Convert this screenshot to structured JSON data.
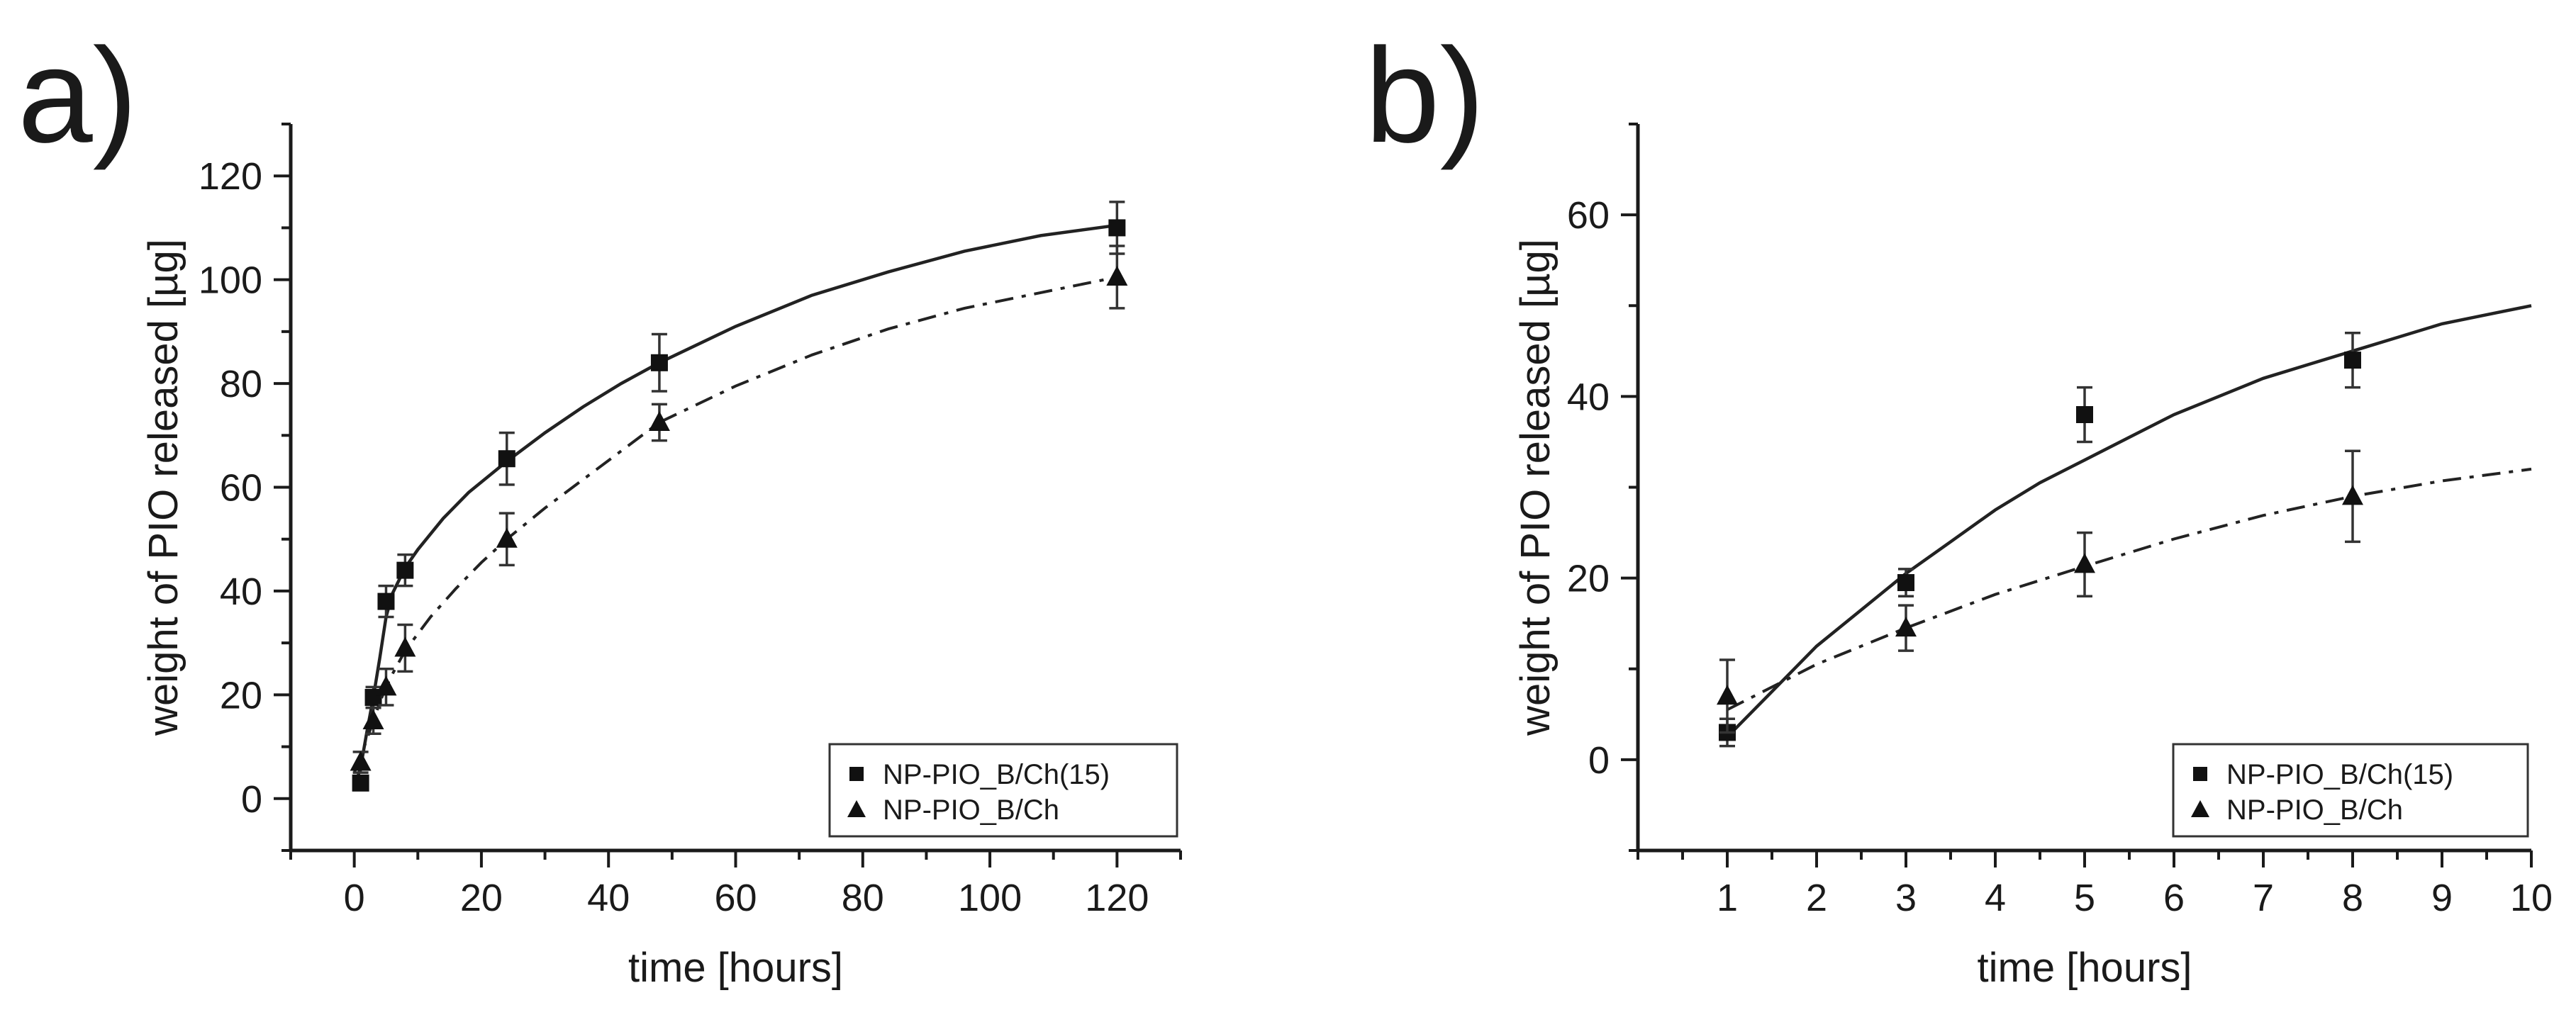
{
  "chart_data": [
    {
      "type": "scatter",
      "panel_label": "a)",
      "xlabel": "time [hours]",
      "ylabel": "weight of PIO released [µg]",
      "xlim": [
        -10,
        130
      ],
      "ylim": [
        -10,
        130
      ],
      "xticks": [
        0,
        20,
        40,
        60,
        80,
        100,
        120
      ],
      "yticks": [
        0,
        20,
        40,
        60,
        80,
        100,
        120
      ],
      "legend": "bottom-right",
      "series": [
        {
          "name": "NP-PIO_B/Ch(15)",
          "marker": "square",
          "line": "solid",
          "x": [
            1,
            3,
            5,
            8,
            24,
            48,
            120
          ],
          "y": [
            3,
            19.5,
            38,
            44,
            65.5,
            84,
            110
          ],
          "err": [
            1,
            2,
            3,
            3,
            5,
            5.5,
            5
          ],
          "fit": [
            [
              0,
              2
            ],
            [
              1,
              6
            ],
            [
              2,
              13
            ],
            [
              3,
              19.5
            ],
            [
              4,
              27
            ],
            [
              5,
              35
            ],
            [
              6,
              39.5
            ],
            [
              7,
              42
            ],
            [
              8,
              44.5
            ],
            [
              10,
              48
            ],
            [
              14,
              54
            ],
            [
              18,
              59
            ],
            [
              24,
              65
            ],
            [
              30,
              70.5
            ],
            [
              36,
              75.5
            ],
            [
              42,
              80
            ],
            [
              48,
              84
            ],
            [
              60,
              91
            ],
            [
              72,
              97
            ],
            [
              84,
              101.5
            ],
            [
              96,
              105.5
            ],
            [
              108,
              108.5
            ],
            [
              120,
              110.5
            ]
          ]
        },
        {
          "name": "NP-PIO_B/Ch",
          "marker": "triangle",
          "line": "dashdot",
          "x": [
            1,
            3,
            5,
            8,
            24,
            48,
            120
          ],
          "y": [
            7,
            15,
            21.5,
            29,
            50,
            72.5,
            100.5
          ],
          "err": [
            2,
            2.5,
            3.5,
            4.5,
            5,
            3.5,
            6
          ],
          "fit": [
            [
              0,
              5
            ],
            [
              1,
              8
            ],
            [
              2,
              11.5
            ],
            [
              3,
              15
            ],
            [
              4,
              18.5
            ],
            [
              5,
              21.5
            ],
            [
              6,
              24
            ],
            [
              8,
              28.5
            ],
            [
              12,
              35
            ],
            [
              16,
              40.5
            ],
            [
              20,
              45.5
            ],
            [
              24,
              50
            ],
            [
              30,
              56
            ],
            [
              36,
              61.5
            ],
            [
              42,
              67
            ],
            [
              48,
              72.5
            ],
            [
              60,
              79.5
            ],
            [
              72,
              85.5
            ],
            [
              84,
              90.5
            ],
            [
              96,
              94.5
            ],
            [
              108,
              97.5
            ],
            [
              120,
              100.5
            ]
          ]
        }
      ]
    },
    {
      "type": "scatter",
      "panel_label": "b)",
      "xlabel": "time [hours]",
      "ylabel": "weight of PIO released [µg]",
      "xlim": [
        0,
        10
      ],
      "ylim": [
        -10,
        70
      ],
      "xticks": [
        1,
        2,
        3,
        4,
        5,
        6,
        7,
        8,
        9,
        10
      ],
      "yticks": [
        0,
        20,
        40,
        60
      ],
      "legend": "bottom-right",
      "series": [
        {
          "name": "NP-PIO_B/Ch(15)",
          "marker": "square",
          "line": "solid",
          "x": [
            1,
            3,
            5,
            8
          ],
          "y": [
            3,
            19.5,
            38,
            44
          ],
          "err": [
            1.5,
            1.5,
            3,
            3
          ],
          "fit": [
            [
              1,
              2.5
            ],
            [
              1.5,
              7.5
            ],
            [
              2,
              12.5
            ],
            [
              2.5,
              16.5
            ],
            [
              3,
              20.5
            ],
            [
              3.5,
              24
            ],
            [
              4,
              27.5
            ],
            [
              4.5,
              30.5
            ],
            [
              5,
              33
            ],
            [
              5.5,
              35.5
            ],
            [
              6,
              38
            ],
            [
              6.5,
              40
            ],
            [
              7,
              42
            ],
            [
              7.5,
              43.5
            ],
            [
              8,
              45
            ],
            [
              8.5,
              46.5
            ],
            [
              9,
              48
            ],
            [
              9.5,
              49
            ],
            [
              10,
              50
            ]
          ]
        },
        {
          "name": "NP-PIO_B/Ch",
          "marker": "triangle",
          "line": "dashdot",
          "x": [
            1,
            3,
            5,
            8
          ],
          "y": [
            7,
            14.5,
            21.5,
            29
          ],
          "err": [
            4,
            2.5,
            3.5,
            5
          ],
          "fit": [
            [
              1,
              5.5
            ],
            [
              1.5,
              8
            ],
            [
              2,
              10.5
            ],
            [
              2.5,
              12.5
            ],
            [
              3,
              14.5
            ],
            [
              4,
              18.2
            ],
            [
              5,
              21.3
            ],
            [
              6,
              24.3
            ],
            [
              7,
              26.9
            ],
            [
              8,
              29
            ],
            [
              9,
              30.7
            ],
            [
              10,
              32
            ]
          ]
        }
      ]
    }
  ]
}
